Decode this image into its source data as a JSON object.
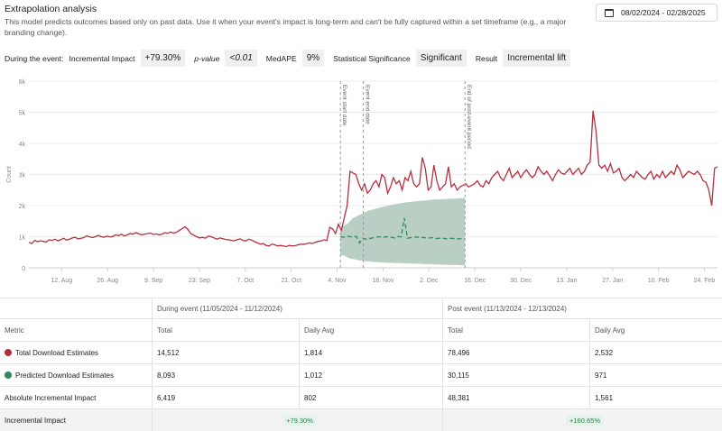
{
  "header": {
    "title": "Extrapolation analysis",
    "description": "This model predicts outcomes based only on past data. Use it when your event's impact is long-term and can't be fully captured within a set timeframe (e.g., a major branding change).",
    "date_range": "08/02/2024 - 02/28/2025"
  },
  "metrics": {
    "during_event_label": "During the event:",
    "incremental_impact_label": "Incremental Impact",
    "incremental_impact_value": "+79.30%",
    "pvalue_label": "p-value",
    "pvalue_value": "<0.01",
    "medape_label": "MedAPE",
    "medape_value": "9%",
    "sig_label": "Statistical Significance",
    "sig_value": "Significant",
    "result_label": "Result",
    "result_value": "Incremental lift"
  },
  "colors": {
    "actual": "#b5303e",
    "predicted": "#2e8b57",
    "band": "#adc7ba"
  },
  "chart_data": {
    "type": "line",
    "ylabel": "Count",
    "ylim": [
      0,
      6000
    ],
    "y_ticks": [
      "0",
      "1k",
      "2k",
      "3k",
      "4k",
      "5k",
      "6k"
    ],
    "x_ticks": [
      "12. Aug",
      "26. Aug",
      "9. Sep",
      "23. Sep",
      "7. Oct",
      "21. Oct",
      "4. Nov",
      "18. Nov",
      "2. Dec",
      "16. Dec",
      "30. Dec",
      "13. Jan",
      "27. Jan",
      "10. Feb",
      "24. Feb"
    ],
    "x_start": "2024-08-02",
    "annotations": [
      {
        "label": "Event start date",
        "date": "2024-11-05"
      },
      {
        "label": "Event end date",
        "date": "2024-11-12"
      },
      {
        "label": "End of post-event period",
        "date": "2024-12-13"
      }
    ],
    "series": [
      {
        "values": [
          820,
          780,
          880,
          840,
          870,
          850,
          830,
          900,
          880,
          920,
          870,
          900,
          950,
          890,
          920,
          960,
          980,
          930,
          950,
          970,
          1030,
          990,
          970,
          1000,
          1040,
          1000,
          980,
          1020,
          990,
          1010,
          1060,
          1030,
          1080,
          1020,
          1060,
          1100,
          1080,
          1130,
          1090,
          1060,
          1080,
          1100,
          1120,
          1070,
          1090,
          1060,
          1080,
          1130,
          1110,
          1150,
          1120,
          1140,
          1200,
          1260,
          1320,
          1230,
          1100,
          1050,
          1000,
          960,
          980,
          950,
          1020,
          1000,
          960,
          920,
          960,
          940,
          910,
          900,
          880,
          870,
          900,
          930,
          880,
          860,
          920,
          890,
          840,
          800,
          760,
          780,
          720,
          700,
          760,
          740,
          700,
          720,
          700,
          680,
          720,
          700,
          710,
          740,
          760,
          750,
          780,
          800,
          780,
          820,
          850,
          860,
          900,
          880,
          1300,
          1250,
          1100,
          1400,
          1200,
          1600,
          2000,
          3100,
          3050,
          3000,
          2700,
          2500,
          2700,
          2400,
          2500,
          2700,
          2800,
          2600,
          3000,
          2900,
          2400,
          2600,
          2900,
          2700,
          2800,
          2500,
          2900,
          2800,
          3100,
          2700,
          2600,
          2700,
          3550,
          3200,
          2500,
          2600,
          3300,
          2800,
          2500,
          2600,
          2700,
          3250,
          2600,
          2700,
          2500,
          2600,
          2650,
          2700,
          2600,
          2650,
          2700,
          2800,
          2650,
          2600,
          2800,
          2700,
          2900,
          3000,
          3100,
          2900,
          2800,
          3000,
          3200,
          2900,
          3000,
          3100,
          2900,
          3050,
          3150,
          3000,
          2900,
          3000,
          3250,
          3100,
          3000,
          3100,
          2950,
          2800,
          3000,
          3150,
          3050,
          3000,
          3100,
          3200,
          3000,
          3100,
          3200,
          3000,
          3100,
          3300,
          3400,
          5050,
          4400,
          3300,
          3200,
          3300,
          3100,
          3350,
          3050,
          3100,
          3200,
          2900,
          2800,
          2900,
          3000,
          2900,
          3100,
          3000,
          2900,
          2850,
          3000,
          3100,
          2850,
          3000,
          2900,
          3100,
          2900,
          3000,
          3100,
          3000,
          3300,
          3150,
          2900,
          3000,
          3100,
          3050,
          3000,
          3100,
          3000,
          2800,
          2750,
          2500,
          2000,
          3200,
          3250
        ]
      },
      {
        "values": [
          1000,
          980,
          1020,
          1000,
          990,
          1010,
          800,
          950,
          920,
          940,
          960,
          980,
          1000,
          970,
          990,
          1000,
          980,
          960,
          1010,
          990,
          1600,
          950,
          970,
          980,
          990,
          960,
          980,
          950,
          960,
          970,
          940,
          950,
          960,
          930,
          940,
          950,
          920,
          930,
          940,
          930
        ]
      },
      {
        "band_lower": [
          400,
          400,
          350,
          300,
          280,
          260,
          240,
          220,
          210,
          200,
          190,
          180,
          180,
          170,
          170,
          160,
          160,
          150,
          150,
          150,
          140,
          140,
          140,
          130,
          130,
          130,
          120,
          120,
          120,
          110,
          110,
          110,
          100,
          100,
          100,
          90,
          90,
          90,
          80,
          80
        ],
        "band_upper": [
          1300,
          1350,
          1400,
          1500,
          1600,
          1650,
          1700,
          1750,
          1800,
          1850,
          1870,
          1900,
          1920,
          1950,
          1970,
          2000,
          2020,
          2040,
          2060,
          2080,
          2100,
          2110,
          2120,
          2130,
          2140,
          2150,
          2160,
          2170,
          2180,
          2190,
          2200,
          2200,
          2210,
          2210,
          2220,
          2220,
          2230,
          2230,
          2240,
          2240
        ]
      }
    ]
  },
  "table": {
    "during_header": "During event (11/05/2024 - 11/12/2024)",
    "post_header": "Post event (11/13/2024 - 12/13/2024)",
    "col_metric": "Metric",
    "col_total": "Total",
    "col_daily": "Daily Avg",
    "rows": [
      {
        "label": "Total Download Estimates",
        "during_total": "14,512",
        "during_daily": "1,814",
        "post_total": "78,496",
        "post_daily": "2,532"
      },
      {
        "label": "Predicted Download Estimates",
        "during_total": "8,093",
        "during_daily": "1,012",
        "post_total": "30,115",
        "post_daily": "971"
      },
      {
        "label": "Absolute Incremental Impact",
        "during_total": "6,419",
        "during_daily": "802",
        "post_total": "48,381",
        "post_daily": "1,561"
      },
      {
        "label": "Incremental Impact",
        "during_pill": "+79.30%",
        "post_pill": "+160.65%"
      }
    ]
  }
}
